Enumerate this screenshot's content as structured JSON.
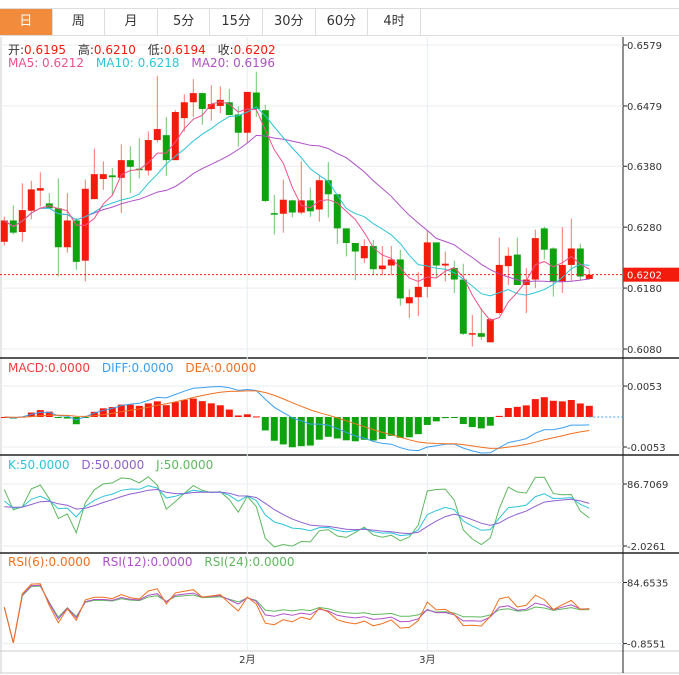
{
  "tabs": [
    {
      "label": "日",
      "active": true
    },
    {
      "label": "周"
    },
    {
      "label": "月"
    },
    {
      "label": "5分"
    },
    {
      "label": "15分"
    },
    {
      "label": "30分"
    },
    {
      "label": "60分"
    },
    {
      "label": "4时"
    }
  ],
  "ohlc_legend": {
    "open_label": "开:",
    "open": "0.6195",
    "high_label": "高:",
    "high": "0.6210",
    "low_label": "低:",
    "low": "0.6194",
    "close_label": "收:",
    "close": "0.6202"
  },
  "ma_legend": {
    "ma5": "MA5: 0.6212",
    "ma10": "MA10: 0.6218",
    "ma20": "MA20: 0.6196"
  },
  "macd_legend": {
    "macd": "MACD:0.0000",
    "diff": "DIFF:0.0000",
    "dea": "DEA:0.0000"
  },
  "kdj_legend": {
    "k": "K:50.0000",
    "d": "D:50.0000",
    "j": "J:50.0000"
  },
  "rsi_legend": {
    "rsi6": "RSI(6):0.0000",
    "rsi12": "RSI(12):0.0000",
    "rsi24": "RSI(24):0.0000"
  },
  "current_price": "0.6202",
  "colors": {
    "up": "#f31b0b",
    "down": "#0ea30e",
    "tab_active": "#f28c3c",
    "ma5": "#f0508c",
    "ma10": "#2ec4d8",
    "ma20": "#b050c8",
    "diff": "#3ca0f0",
    "dea": "#f07020",
    "k": "#2ec4d8",
    "d": "#9060d0",
    "j": "#60b860",
    "rsi6": "#f07020",
    "rsi12": "#b050c8",
    "rsi24": "#60b860"
  },
  "chart_data": {
    "type": "candlestick",
    "ylim": [
      0.608,
      0.6579
    ],
    "price_ticks": [
      "0.6579",
      "0.6479",
      "0.6380",
      "0.6280",
      "0.6180",
      "0.6080"
    ],
    "macd_ticks": [
      "0.0053",
      "-0.0053"
    ],
    "kdj_ticks": [
      "86.7069",
      "-2.0261"
    ],
    "rsi_ticks": [
      "84.6535",
      "-0.8551"
    ],
    "x_labels": [
      {
        "index": 27,
        "label": "2月"
      },
      {
        "index": 47,
        "label": "3月"
      }
    ],
    "ohlc": [
      [
        0.6256,
        0.6297,
        0.625,
        0.6291
      ],
      [
        0.6291,
        0.6316,
        0.6268,
        0.6271
      ],
      [
        0.6272,
        0.6352,
        0.6256,
        0.6308
      ],
      [
        0.6307,
        0.6356,
        0.6293,
        0.6342
      ],
      [
        0.634,
        0.637,
        0.6314,
        0.6344
      ],
      [
        0.6319,
        0.6336,
        0.6311,
        0.6311
      ],
      [
        0.6311,
        0.636,
        0.6199,
        0.6247
      ],
      [
        0.6247,
        0.6336,
        0.6238,
        0.6291
      ],
      [
        0.6291,
        0.6295,
        0.621,
        0.6223
      ],
      [
        0.6225,
        0.6358,
        0.6191,
        0.6343
      ],
      [
        0.6326,
        0.6409,
        0.6326,
        0.6367
      ],
      [
        0.6359,
        0.6388,
        0.6341,
        0.6367
      ],
      [
        0.6365,
        0.6377,
        0.6333,
        0.6362
      ],
      [
        0.6361,
        0.6416,
        0.6303,
        0.639
      ],
      [
        0.639,
        0.6413,
        0.6336,
        0.6379
      ],
      [
        0.6376,
        0.6426,
        0.636,
        0.6375
      ],
      [
        0.6373,
        0.6437,
        0.6365,
        0.6423
      ],
      [
        0.6423,
        0.6528,
        0.6419,
        0.6441
      ],
      [
        0.6431,
        0.6461,
        0.6364,
        0.639
      ],
      [
        0.639,
        0.6472,
        0.639,
        0.6469
      ],
      [
        0.6459,
        0.6498,
        0.6437,
        0.6485
      ],
      [
        0.6485,
        0.6523,
        0.6461,
        0.65
      ],
      [
        0.65,
        0.6501,
        0.6448,
        0.6474
      ],
      [
        0.6474,
        0.6513,
        0.6455,
        0.6482
      ],
      [
        0.6479,
        0.6511,
        0.6467,
        0.6489
      ],
      [
        0.6485,
        0.6507,
        0.6464,
        0.6464
      ],
      [
        0.6465,
        0.6478,
        0.6412,
        0.6435
      ],
      [
        0.6435,
        0.6502,
        0.6418,
        0.6502
      ],
      [
        0.6501,
        0.6535,
        0.6461,
        0.6474
      ],
      [
        0.6472,
        0.6481,
        0.6321,
        0.6323
      ],
      [
        0.6303,
        0.6333,
        0.6268,
        0.6301
      ],
      [
        0.6302,
        0.6358,
        0.6271,
        0.6325
      ],
      [
        0.6324,
        0.6325,
        0.6296,
        0.6304
      ],
      [
        0.6304,
        0.6388,
        0.6301,
        0.6324
      ],
      [
        0.6324,
        0.6345,
        0.6297,
        0.6306
      ],
      [
        0.6309,
        0.6366,
        0.6289,
        0.6357
      ],
      [
        0.6357,
        0.6387,
        0.6296,
        0.6334
      ],
      [
        0.6334,
        0.6334,
        0.6252,
        0.6278
      ],
      [
        0.6278,
        0.6278,
        0.6232,
        0.6254
      ],
      [
        0.6254,
        0.6254,
        0.6193,
        0.624
      ],
      [
        0.6229,
        0.626,
        0.6221,
        0.6249
      ],
      [
        0.6249,
        0.6259,
        0.6201,
        0.6211
      ],
      [
        0.6211,
        0.6249,
        0.6201,
        0.6217
      ],
      [
        0.6217,
        0.6249,
        0.6201,
        0.6227
      ],
      [
        0.6227,
        0.6243,
        0.6151,
        0.6163
      ],
      [
        0.6155,
        0.6178,
        0.6131,
        0.6165
      ],
      [
        0.6165,
        0.6206,
        0.6134,
        0.6182
      ],
      [
        0.6182,
        0.6274,
        0.6165,
        0.6255
      ],
      [
        0.6255,
        0.6255,
        0.6197,
        0.6217
      ],
      [
        0.6217,
        0.624,
        0.6191,
        0.622
      ],
      [
        0.6213,
        0.6225,
        0.6172,
        0.6194
      ],
      [
        0.6194,
        0.622,
        0.6103,
        0.6105
      ],
      [
        0.6105,
        0.6136,
        0.6084,
        0.6106
      ],
      [
        0.6106,
        0.6147,
        0.6095,
        0.61
      ],
      [
        0.6091,
        0.6131,
        0.6091,
        0.6129
      ],
      [
        0.6139,
        0.6263,
        0.6136,
        0.6218
      ],
      [
        0.6216,
        0.6247,
        0.6185,
        0.6233
      ],
      [
        0.6235,
        0.6263,
        0.6185,
        0.6185
      ],
      [
        0.6185,
        0.6213,
        0.6139,
        0.6194
      ],
      [
        0.6194,
        0.6276,
        0.618,
        0.6262
      ],
      [
        0.6278,
        0.6281,
        0.6227,
        0.6243
      ],
      [
        0.6245,
        0.6247,
        0.6166,
        0.6191
      ],
      [
        0.6191,
        0.628,
        0.6172,
        0.6218
      ],
      [
        0.6218,
        0.6294,
        0.6191,
        0.6245
      ],
      [
        0.6245,
        0.6253,
        0.6192,
        0.6199
      ],
      [
        0.6195,
        0.621,
        0.6194,
        0.6202
      ]
    ]
  }
}
